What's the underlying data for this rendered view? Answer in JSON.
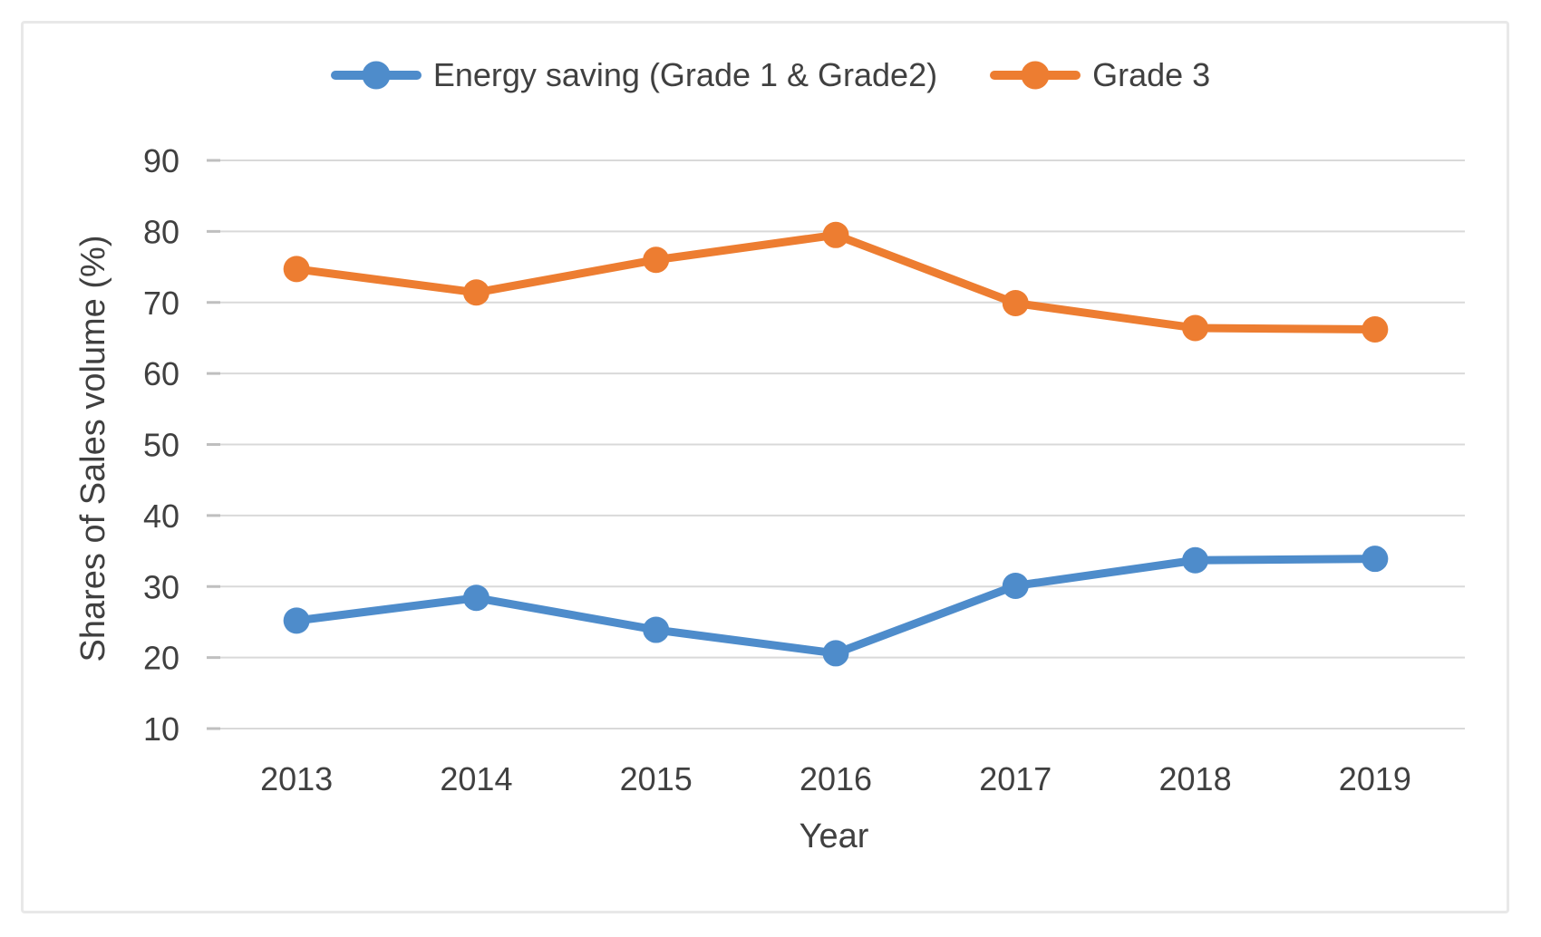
{
  "chart_data": {
    "type": "line",
    "title": "",
    "xlabel": "Year",
    "ylabel": "Shares of Sales volume (%)",
    "categories": [
      "2013",
      "2014",
      "2015",
      "2016",
      "2017",
      "2018",
      "2019"
    ],
    "series": [
      {
        "name": "Energy saving (Grade 1 & Grade2)",
        "color": "#4e8ccb",
        "values": [
          25.2,
          28.4,
          23.9,
          20.6,
          30.1,
          33.7,
          33.9
        ]
      },
      {
        "name": "Grade 3",
        "color": "#ed7d31",
        "values": [
          74.7,
          71.4,
          76.0,
          79.5,
          69.9,
          66.4,
          66.2
        ]
      }
    ],
    "y_ticks": [
      10,
      20,
      30,
      40,
      50,
      60,
      70,
      80,
      90
    ],
    "ylim": [
      10,
      90
    ],
    "grid": "horizontal",
    "legend_position": "top-center",
    "marker": "circle",
    "colors": {
      "grid": "#d9d9d9",
      "tick_mark": "#bfbfbf",
      "text": "#404040",
      "frame_border": "#e8e8e8",
      "background": "#ffffff"
    }
  }
}
